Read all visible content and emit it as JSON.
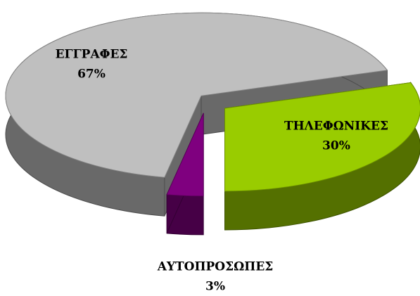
{
  "chart_data": {
    "type": "pie",
    "categories": [
      "ΤΗΛΕΦΩΝΙΚΕΣ",
      "ΑΥΤΟΠΡΟΣΩΠΕΣ",
      "ΕΓΓΡΑΦΕΣ"
    ],
    "values": [
      30,
      3,
      67
    ],
    "value_labels": [
      "30%",
      "3%",
      "67%"
    ],
    "colors": [
      "#99cc00",
      "#7f007f",
      "#bfbfbf"
    ]
  }
}
